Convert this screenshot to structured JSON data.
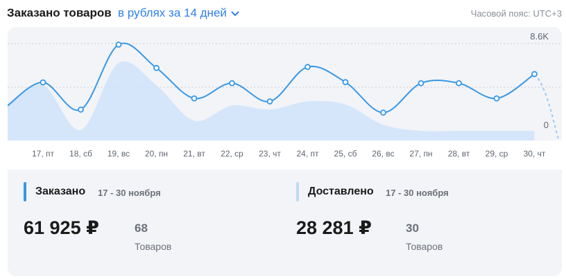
{
  "header": {
    "title": "Заказано товаров",
    "period": "в рублях за 14 дней",
    "timezone": "Часовой пояс: UTC+3"
  },
  "chart_data": {
    "type": "line",
    "x": [
      "17, пт",
      "18, сб",
      "19, вс",
      "20, пн",
      "21, вт",
      "22, ср",
      "23, чт",
      "24, пт",
      "25, сб",
      "26, вс",
      "27, пн",
      "28, вт",
      "29, ср",
      "30, чт"
    ],
    "y_tick_labels": [
      "8.6K",
      "0"
    ],
    "ylim": [
      0,
      8600
    ],
    "grid": true,
    "series": [
      {
        "key": "ordered",
        "style": "line",
        "color": "#3598e8",
        "values": [
          4780,
          2100,
          8500,
          6200,
          3200,
          4700,
          2900,
          6300,
          4800,
          1800,
          4700,
          4700,
          3200,
          5600
        ]
      },
      {
        "key": "delivered",
        "style": "area",
        "color": "#cfe3fa",
        "values": [
          4500,
          100,
          6700,
          4500,
          1000,
          2500,
          2100,
          2900,
          2600,
          600,
          0,
          0,
          0,
          0
        ]
      }
    ]
  },
  "stats": {
    "ordered": {
      "title": "Заказано",
      "range": "17 - 30 ноября",
      "amount": "61 925 ₽",
      "count": "68",
      "count_label": "Товаров",
      "color": "#3598e8"
    },
    "delivered": {
      "title": "Доставлено",
      "range": "17 - 30 ноября",
      "amount": "28 281 ₽",
      "count": "30",
      "count_label": "Товаров",
      "color": "#bcdcf7"
    }
  }
}
